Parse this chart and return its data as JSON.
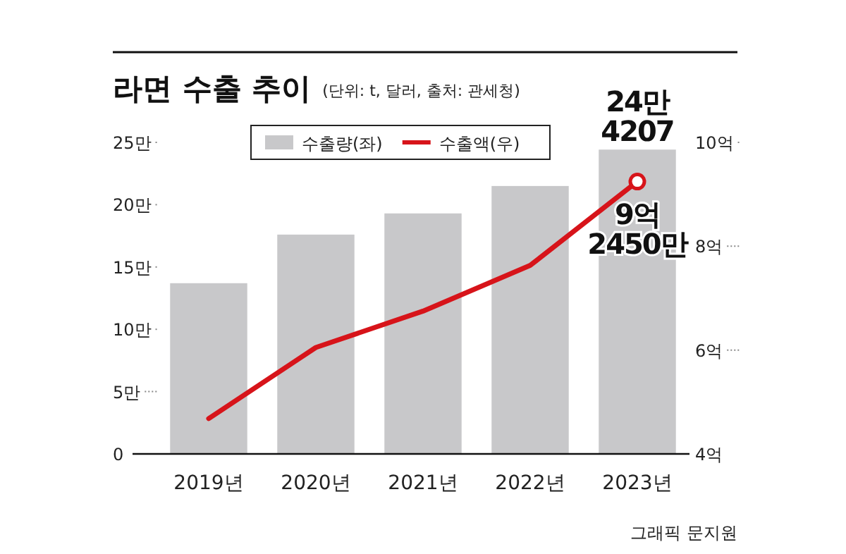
{
  "chart_data": {
    "type": "bar",
    "title": "라면 수출 추이",
    "subtitle": "(단위: t, 달러, 출처: 관세청)",
    "categories": [
      "2019년",
      "2020년",
      "2021년",
      "2022년",
      "2023년"
    ],
    "series": [
      {
        "name": "수출량(좌)",
        "color": "#c8c8ca",
        "values": [
          13.7,
          17.6,
          19.3,
          21.5,
          24.4207
        ],
        "value_labels": [
          null,
          null,
          null,
          null,
          "24만 4207"
        ]
      },
      {
        "name": "수출액(우)",
        "type": "line",
        "axis": "y2",
        "color": "#d7141a",
        "values": [
          4.68,
          6.05,
          6.75,
          7.63,
          9.245
        ],
        "value_labels": [
          null,
          null,
          null,
          null,
          "9억 2450만"
        ]
      }
    ],
    "ylim": [
      0,
      25
    ],
    "yticks": [
      0,
      {
        "value": 5,
        "label": "5만"
      },
      {
        "value": 10,
        "label": "10만"
      },
      {
        "value": 15,
        "label": "15만"
      },
      {
        "value": 20,
        "label": "20만"
      },
      {
        "value": 25,
        "label": "25만"
      }
    ],
    "y2lim": [
      4,
      10
    ],
    "y2ticks": [
      {
        "value": 4,
        "label": "4억"
      },
      {
        "value": 6,
        "label": "6억"
      },
      {
        "value": 8,
        "label": "8억"
      },
      {
        "value": 10,
        "label": "10억"
      }
    ],
    "legend": "top",
    "marker": "none",
    "line_style": "solid",
    "annotations": [
      "그래픽 문지원"
    ]
  }
}
